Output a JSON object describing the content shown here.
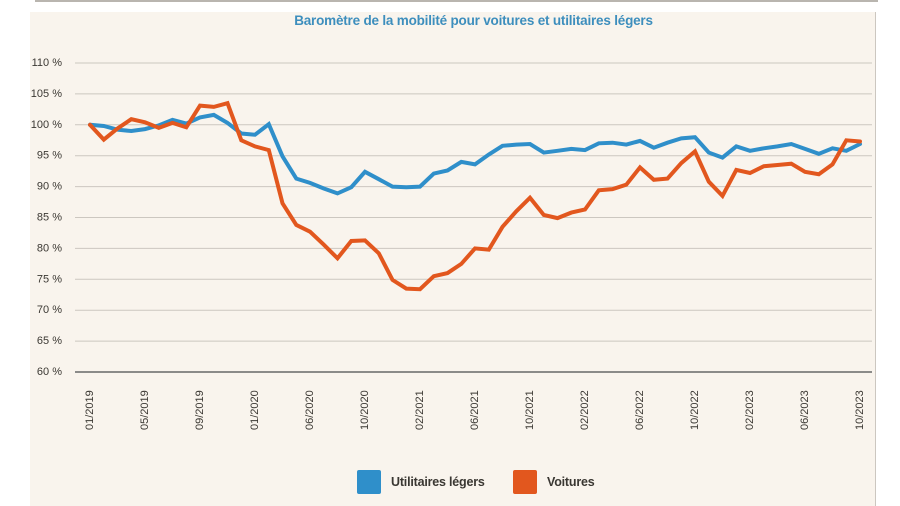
{
  "title": "Baromètre de la mobilité pour voitures et utilitaires légers",
  "colors": {
    "utilitaires": "#2f8fca",
    "voitures": "#e2571e",
    "title": "#3d8ebd",
    "panel_bg": "#f9f4ed",
    "grid": "#ccc7c0",
    "baseline": "#8b8b89",
    "axis_text": "#3b3833"
  },
  "legend": {
    "items": [
      {
        "label": "Utilitaires légers",
        "color": "#2f8fca"
      },
      {
        "label": "Voitures",
        "color": "#e2571e"
      }
    ]
  },
  "chart_data": {
    "type": "line",
    "title": "Baromètre de la mobilité pour voitures et utilitaires légers",
    "ylabel": "",
    "xlabel": "",
    "ylim": [
      60,
      110
    ],
    "y_unit": "%",
    "grid": true,
    "legend_position": "bottom",
    "y_ticks": [
      "110 %",
      "105 %",
      "100 %",
      "95 %",
      "90 %",
      "85 %",
      "80 %",
      "75 %",
      "70 %",
      "65 %",
      "60 %"
    ],
    "y_tick_values": [
      110,
      105,
      100,
      95,
      90,
      85,
      80,
      75,
      70,
      65,
      60
    ],
    "x": [
      "01/2019",
      "02/2019",
      "03/2019",
      "04/2019",
      "05/2019",
      "06/2019",
      "07/2019",
      "08/2019",
      "09/2019",
      "10/2019",
      "11/2019",
      "12/2019",
      "01/2020",
      "02/2020",
      "03/2020",
      "05/2020",
      "06/2020",
      "07/2020",
      "08/2020",
      "09/2020",
      "10/2020",
      "11/2020",
      "12/2020",
      "01/2021",
      "02/2021",
      "03/2021",
      "04/2021",
      "05/2021",
      "06/2021",
      "07/2021",
      "08/2021",
      "09/2021",
      "10/2021",
      "11/2021",
      "12/2021",
      "01/2022",
      "02/2022",
      "03/2022",
      "04/2022",
      "05/2022",
      "06/2022",
      "07/2022",
      "08/2022",
      "09/2022",
      "10/2022",
      "11/2022",
      "12/2022",
      "01/2023",
      "02/2023",
      "03/2023",
      "04/2023",
      "05/2023",
      "06/2023",
      "07/2023",
      "08/2023",
      "09/2023",
      "10/2023"
    ],
    "x_tick_every": 4,
    "x_tick_labels": [
      "01/2019",
      "05/2019",
      "09/2019",
      "01/2020",
      "06/2020",
      "10/2020",
      "02/2021",
      "06/2021",
      "10/2021",
      "02/2022",
      "06/2022",
      "10/2022",
      "02/2023",
      "06/2023",
      "10/2023"
    ],
    "series": [
      {
        "name": "Utilitaires légers",
        "color": "#2f8fca",
        "values": [
          100.0,
          99.8,
          99.2,
          99.0,
          99.3,
          99.9,
          100.8,
          100.2,
          101.2,
          101.6,
          100.3,
          98.6,
          98.4,
          100.1,
          94.9,
          91.3,
          90.6,
          89.7,
          88.9,
          89.9,
          92.4,
          91.2,
          90.0,
          89.9,
          90.0,
          92.1,
          92.6,
          94.0,
          93.6,
          95.2,
          96.6,
          96.8,
          96.9,
          95.5,
          95.8,
          96.1,
          95.9,
          97.0,
          97.1,
          96.8,
          97.4,
          96.3,
          97.1,
          97.8,
          98.0,
          95.5,
          94.7,
          96.5,
          95.8,
          96.2,
          96.5,
          96.9,
          96.1,
          95.3,
          96.2,
          95.8,
          96.9
        ]
      },
      {
        "name": "Voitures",
        "color": "#e2571e",
        "values": [
          100.0,
          97.6,
          99.4,
          100.9,
          100.4,
          99.5,
          100.3,
          99.6,
          103.1,
          102.9,
          103.5,
          97.5,
          96.5,
          95.9,
          87.3,
          83.8,
          82.7,
          80.6,
          78.4,
          81.2,
          81.3,
          79.2,
          74.9,
          73.5,
          73.4,
          75.5,
          76.0,
          77.5,
          80.0,
          79.8,
          83.5,
          86.0,
          88.2,
          85.4,
          84.9,
          85.8,
          86.3,
          89.4,
          89.6,
          90.3,
          93.1,
          91.1,
          91.3,
          93.8,
          95.7,
          90.8,
          88.5,
          92.7,
          92.2,
          93.3,
          93.5,
          93.7,
          92.4,
          92.0,
          93.6,
          97.5,
          97.3
        ]
      }
    ]
  }
}
